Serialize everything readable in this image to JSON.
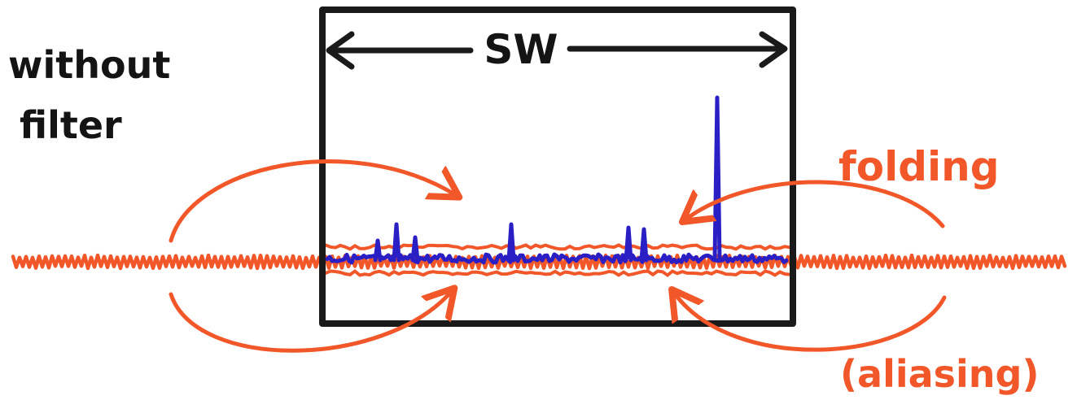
{
  "labels": {
    "left_line1": "without",
    "left_line2": "filter",
    "sw": "SW",
    "folding": "folding",
    "aliasing": "(aliasing)"
  },
  "colors": {
    "box": "#1a1a1a",
    "noise": "#f2572a",
    "arrows": "#f2572a",
    "spectrum": "#2a1fc4",
    "text_black": "#141414",
    "text_orange": "#f2572a"
  },
  "spectrum_peaks": [
    {
      "name": "peak-1",
      "height": 0.12
    },
    {
      "name": "peak-2",
      "height": 0.22
    },
    {
      "name": "peak-3",
      "height": 0.14
    },
    {
      "name": "peak-4",
      "height": 0.22
    },
    {
      "name": "peak-5",
      "height": 0.2
    },
    {
      "name": "peak-6",
      "height": 0.19
    },
    {
      "name": "peak-7",
      "height": 1.0
    }
  ]
}
